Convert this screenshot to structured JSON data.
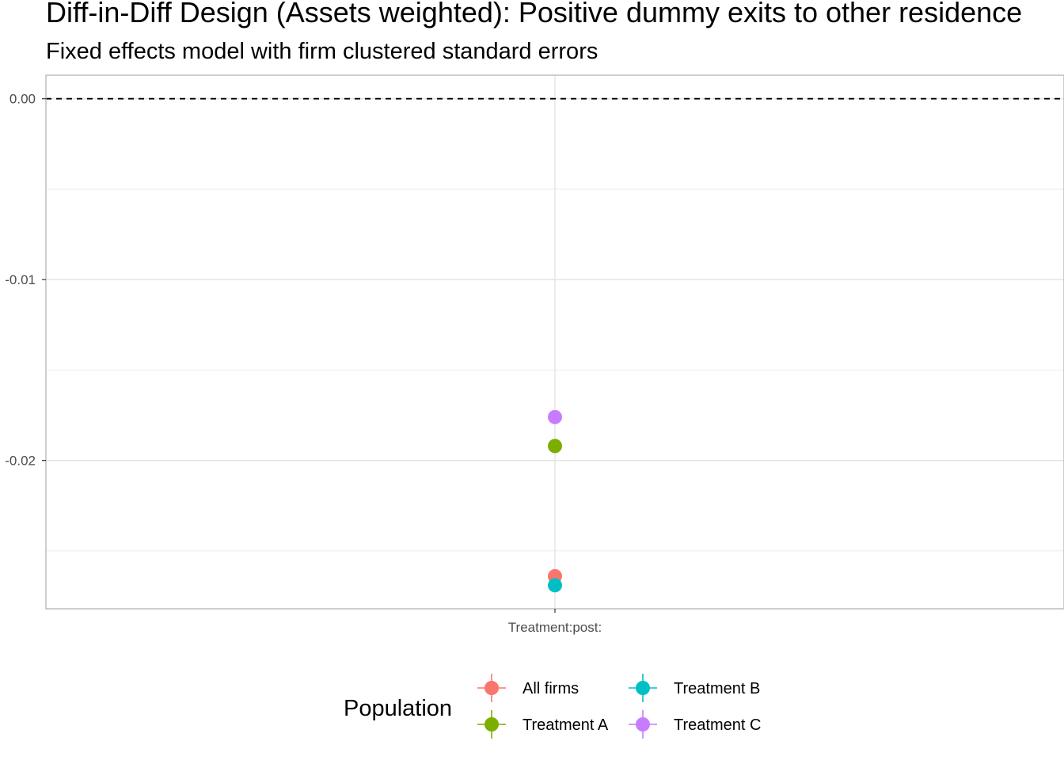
{
  "chart_data": {
    "type": "scatter",
    "title": "Diff-in-Diff Design (Assets weighted): Positive dummy exits to other residence",
    "subtitle": "Fixed effects model with firm clustered standard errors",
    "xlabel": "",
    "ylabel": "",
    "categories": [
      "Treatment:post:"
    ],
    "ylim": [
      -0.0282,
      0.0013
    ],
    "y_ticks": [
      0.0,
      -0.01,
      -0.02
    ],
    "y_tick_labels": [
      "0.00",
      "-0.01",
      "-0.02"
    ],
    "grid": true,
    "reference_line": {
      "y": 0,
      "style": "dashed"
    },
    "legend": {
      "title": "Population",
      "position": "bottom"
    },
    "series": [
      {
        "name": "All firms",
        "color": "#F8766D",
        "values": [
          -0.0264
        ]
      },
      {
        "name": "Treatment A",
        "color": "#7CAE00",
        "values": [
          -0.0192
        ]
      },
      {
        "name": "Treatment B",
        "color": "#00BFC4",
        "values": [
          -0.0269
        ]
      },
      {
        "name": "Treatment C",
        "color": "#C77CFF",
        "values": [
          -0.0176
        ]
      }
    ]
  }
}
